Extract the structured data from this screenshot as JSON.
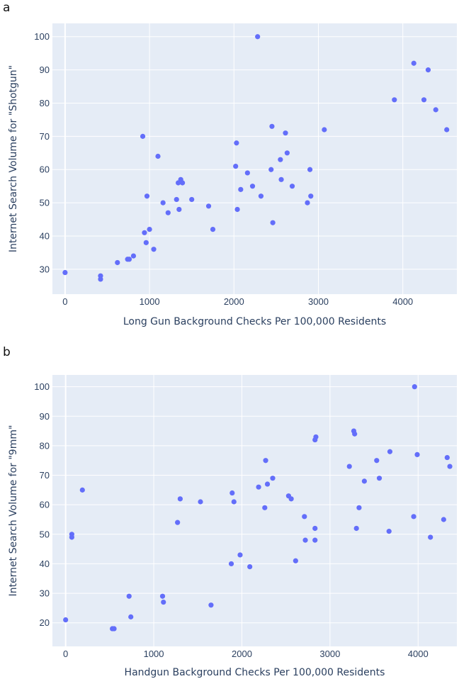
{
  "colors": {
    "plot_bg": "#E5ECF6",
    "marker": "#636EFA",
    "grid": "#FFFFFF",
    "text": "#2A3F5F"
  },
  "chart_data": [
    {
      "panel": "a",
      "type": "scatter",
      "xlabel": "Long Gun Background Checks Per 100,000 Residents",
      "ylabel": "Internet Search Volume for \"Shotgun\"",
      "xlim": [
        -150,
        4640
      ],
      "ylim": [
        22.5,
        104
      ],
      "xticks": [
        0,
        1000,
        2000,
        3000,
        4000
      ],
      "yticks": [
        30,
        40,
        50,
        60,
        70,
        80,
        90,
        100
      ],
      "grid": true,
      "legend": "none",
      "points": [
        [
          0,
          29
        ],
        [
          420,
          28
        ],
        [
          420,
          27
        ],
        [
          620,
          32
        ],
        [
          740,
          33
        ],
        [
          760,
          33
        ],
        [
          810,
          34
        ],
        [
          920,
          70
        ],
        [
          940,
          41
        ],
        [
          960,
          38
        ],
        [
          970,
          52
        ],
        [
          1000,
          42
        ],
        [
          1050,
          36
        ],
        [
          1100,
          64
        ],
        [
          1160,
          50
        ],
        [
          1220,
          47
        ],
        [
          1320,
          51
        ],
        [
          1340,
          56
        ],
        [
          1350,
          48
        ],
        [
          1370,
          57
        ],
        [
          1390,
          56
        ],
        [
          1500,
          51
        ],
        [
          1700,
          49
        ],
        [
          1750,
          42
        ],
        [
          2020,
          61
        ],
        [
          2030,
          68
        ],
        [
          2040,
          48
        ],
        [
          2080,
          54
        ],
        [
          2160,
          59
        ],
        [
          2220,
          55
        ],
        [
          2280,
          100
        ],
        [
          2320,
          52
        ],
        [
          2440,
          60
        ],
        [
          2450,
          73
        ],
        [
          2460,
          44
        ],
        [
          2550,
          63
        ],
        [
          2560,
          57
        ],
        [
          2610,
          71
        ],
        [
          2630,
          65
        ],
        [
          2690,
          55
        ],
        [
          2870,
          50
        ],
        [
          2900,
          60
        ],
        [
          2910,
          52
        ],
        [
          3070,
          72
        ],
        [
          3900,
          81
        ],
        [
          4130,
          92
        ],
        [
          4250,
          81
        ],
        [
          4300,
          90
        ],
        [
          4390,
          78
        ],
        [
          4520,
          72
        ]
      ]
    },
    {
      "panel": "b",
      "type": "scatter",
      "xlabel": "Handgun Background Checks Per 100,000 Residents",
      "ylabel": "Internet Search Volume for \"9mm\"",
      "xlim": [
        -150,
        4440
      ],
      "ylim": [
        12,
        104
      ],
      "xticks": [
        0,
        1000,
        2000,
        3000,
        4000
      ],
      "yticks": [
        20,
        30,
        40,
        50,
        60,
        70,
        80,
        90,
        100
      ],
      "grid": true,
      "legend": "none",
      "points": [
        [
          0,
          21
        ],
        [
          70,
          50
        ],
        [
          70,
          49
        ],
        [
          190,
          65
        ],
        [
          530,
          18
        ],
        [
          550,
          18
        ],
        [
          720,
          29
        ],
        [
          740,
          22
        ],
        [
          1100,
          29
        ],
        [
          1110,
          27
        ],
        [
          1270,
          54
        ],
        [
          1300,
          62
        ],
        [
          1530,
          61
        ],
        [
          1650,
          26
        ],
        [
          1880,
          40
        ],
        [
          1890,
          64
        ],
        [
          1910,
          61
        ],
        [
          1980,
          43
        ],
        [
          2090,
          39
        ],
        [
          2190,
          66
        ],
        [
          2260,
          59
        ],
        [
          2270,
          75
        ],
        [
          2290,
          67
        ],
        [
          2350,
          69
        ],
        [
          2530,
          63
        ],
        [
          2560,
          62
        ],
        [
          2610,
          41
        ],
        [
          2710,
          56
        ],
        [
          2720,
          48
        ],
        [
          2830,
          82
        ],
        [
          2840,
          83
        ],
        [
          2830,
          52
        ],
        [
          2830,
          48
        ],
        [
          3220,
          73
        ],
        [
          3270,
          85
        ],
        [
          3280,
          84
        ],
        [
          3300,
          52
        ],
        [
          3330,
          59
        ],
        [
          3390,
          68
        ],
        [
          3530,
          75
        ],
        [
          3560,
          69
        ],
        [
          3670,
          51
        ],
        [
          3680,
          78
        ],
        [
          3950,
          56
        ],
        [
          3960,
          100
        ],
        [
          3990,
          77
        ],
        [
          4140,
          49
        ],
        [
          4290,
          55
        ],
        [
          4330,
          76
        ],
        [
          4360,
          73
        ]
      ]
    }
  ]
}
